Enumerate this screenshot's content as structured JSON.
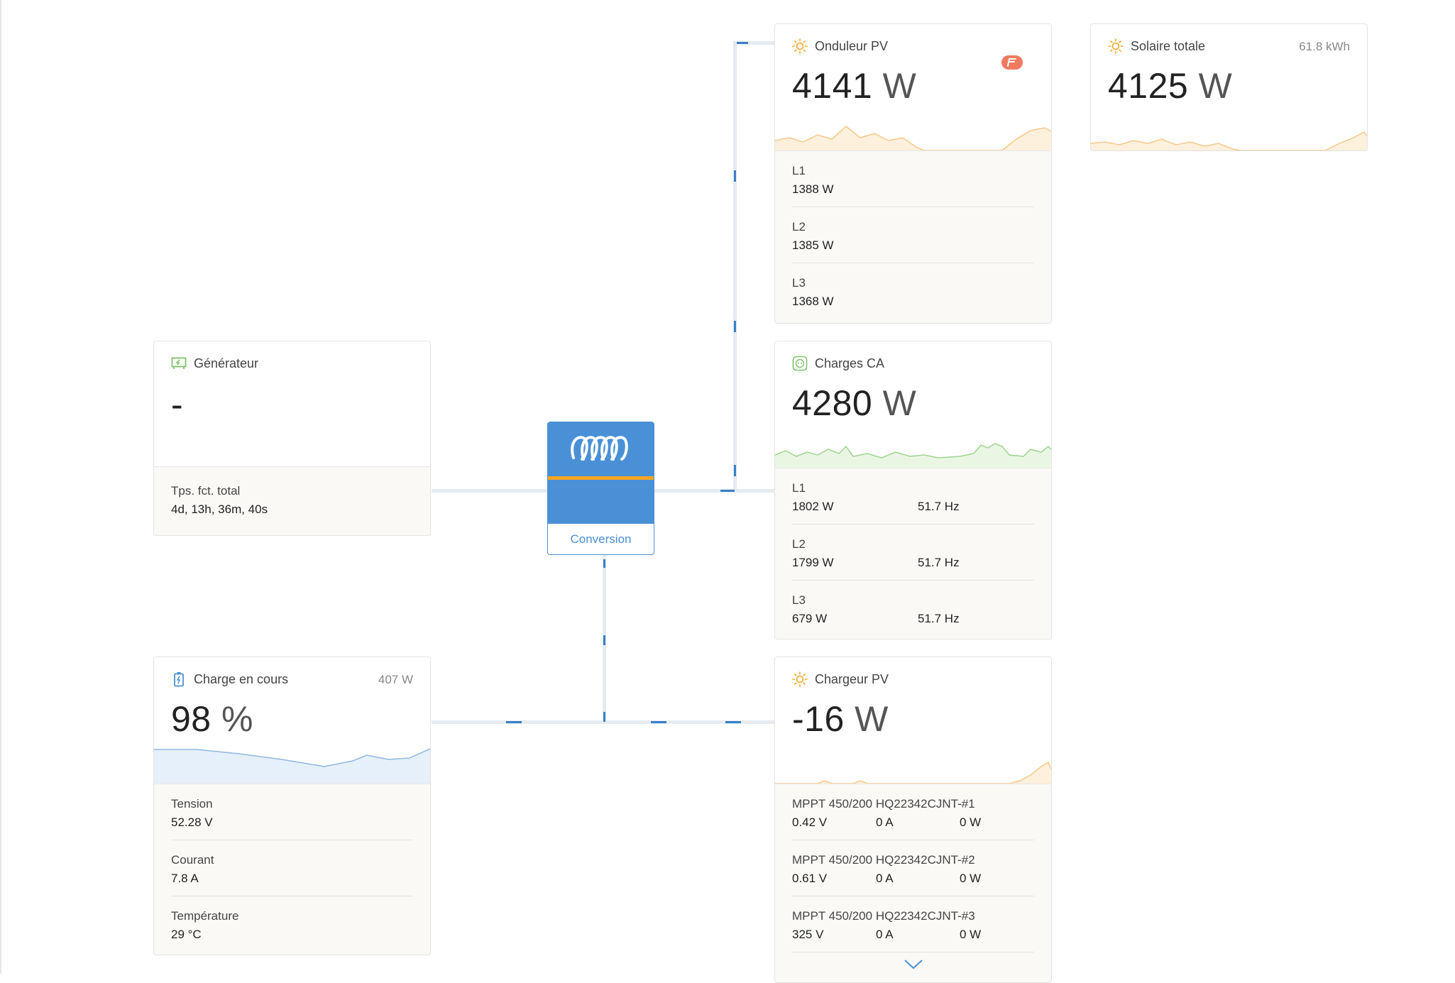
{
  "generator": {
    "title": "Générateur",
    "icon": "generator-icon",
    "value": "-",
    "rows": [
      {
        "label": "Tps. fct. total",
        "value": "4d, 13h, 36m, 40s"
      }
    ]
  },
  "battery": {
    "title": "Charge en cours",
    "icon": "battery-icon",
    "power": "407 W",
    "value": "98",
    "unit": "%",
    "rows": [
      {
        "label": "Tension",
        "value": "52.28 V"
      },
      {
        "label": "Courant",
        "value": "7.8 A"
      },
      {
        "label": "Température",
        "value": "29 °C"
      }
    ]
  },
  "inverter": {
    "label": "Conversion",
    "icon": "victron-logo-icon"
  },
  "pv_inverter": {
    "title": "Onduleur PV",
    "icon": "sun-icon",
    "badge_icon": "fronius-logo-icon",
    "value": "4141",
    "unit": "W",
    "rows": [
      {
        "label": "L1",
        "value": "1388 W"
      },
      {
        "label": "L2",
        "value": "1385 W"
      },
      {
        "label": "L3",
        "value": "1368 W"
      }
    ]
  },
  "solar_total": {
    "title": "Solaire totale",
    "icon": "sun-icon",
    "energy": "61.8 kWh",
    "value": "4125",
    "unit": "W"
  },
  "ac_loads": {
    "title": "Charges CA",
    "icon": "socket-icon",
    "value": "4280",
    "unit": "W",
    "rows": [
      {
        "label": "L1",
        "power": "1802 W",
        "freq": "51.7 Hz"
      },
      {
        "label": "L2",
        "power": "1799 W",
        "freq": "51.7 Hz"
      },
      {
        "label": "L3",
        "power": "679 W",
        "freq": "51.7 Hz"
      }
    ]
  },
  "pv_charger": {
    "title": "Chargeur PV",
    "icon": "sun-icon",
    "value": "-16",
    "unit": "W",
    "rows": [
      {
        "label": "MPPT 450/200 HQ22342CJNT-#1",
        "voltage": "0.42 V",
        "current": "0 A",
        "power": "0 W"
      },
      {
        "label": "MPPT 450/200 HQ22342CJNT-#2",
        "voltage": "0.61 V",
        "current": "0 A",
        "power": "0 W"
      },
      {
        "label": "MPPT 450/200 HQ22342CJNT-#3",
        "voltage": "325 V",
        "current": "0 A",
        "power": "0 W"
      }
    ],
    "more_icon": "chevron-down-icon"
  },
  "colors": {
    "solar": "#f5a623",
    "ac": "#7cc36b",
    "battery": "#4a90d6",
    "wire": "#e5ebf0"
  }
}
